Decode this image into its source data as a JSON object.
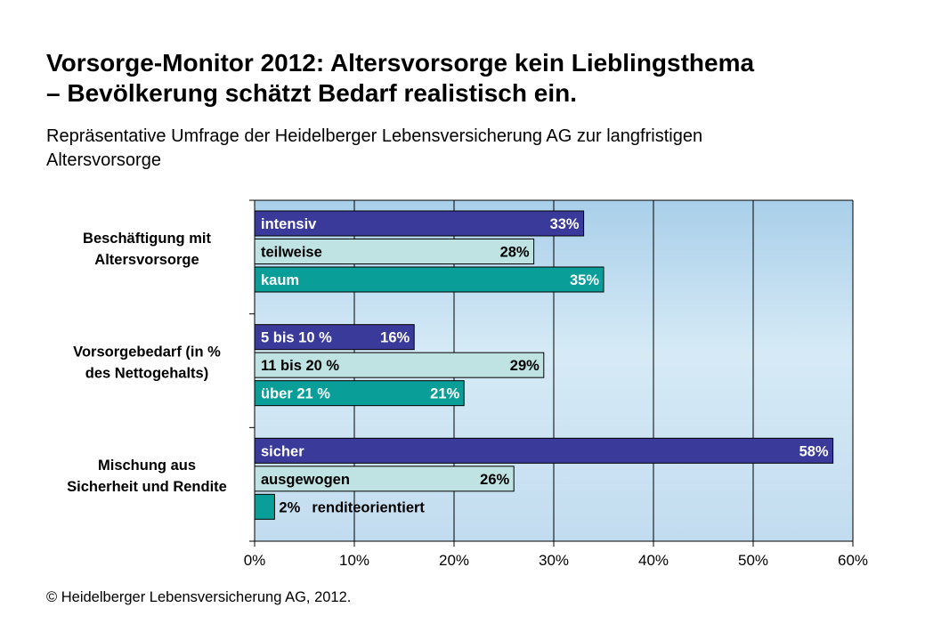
{
  "header": {
    "title_line1": "Vorsorge-Monitor 2012: Altersvorsorge kein Lieblingsthema",
    "title_line2": "– Bevölkerung schätzt Bedarf realistisch ein.",
    "subtitle_line1": "Repräsentative Umfrage der Heidelberger Lebensversicherung AG zur langfristigen",
    "subtitle_line2": "Altersvorsorge"
  },
  "footer": {
    "copyright": "© Heidelberger Lebensversicherung AG, 2012."
  },
  "colors": {
    "dark": "#3a3a9a",
    "light": "#bfe2e2",
    "teal": "#0a9e99",
    "plot_bg": "#c7e1f2",
    "grid": "#000000"
  },
  "chart_data": {
    "type": "bar",
    "orientation": "horizontal",
    "xlim": [
      0,
      60
    ],
    "x_ticks": [
      "0%",
      "10%",
      "20%",
      "30%",
      "40%",
      "50%",
      "60%"
    ],
    "grid": true,
    "groups": [
      {
        "label_lines": [
          "Beschäftigung mit",
          "Altersvorsorge"
        ],
        "bars": [
          {
            "label": "intensiv",
            "value": 33,
            "value_label": "33%",
            "color": "dark"
          },
          {
            "label": "teilweise",
            "value": 28,
            "value_label": "28%",
            "color": "light"
          },
          {
            "label": "kaum",
            "value": 35,
            "value_label": "35%",
            "color": "teal"
          }
        ]
      },
      {
        "label_lines": [
          "Vorsorgebedarf (in %",
          "des Nettogehalts)"
        ],
        "bars": [
          {
            "label": "5 bis 10 %",
            "value": 16,
            "value_label": "16%",
            "color": "dark"
          },
          {
            "label": "11 bis 20 %",
            "value": 29,
            "value_label": "29%",
            "color": "light"
          },
          {
            "label": "über 21 %",
            "value": 21,
            "value_label": "21%",
            "color": "teal"
          }
        ]
      },
      {
        "label_lines": [
          "Mischung aus",
          "Sicherheit und Rendite"
        ],
        "bars": [
          {
            "label": "sicher",
            "value": 58,
            "value_label": "58%",
            "color": "dark"
          },
          {
            "label": "ausgewogen",
            "value": 26,
            "value_label": "26%",
            "color": "light"
          },
          {
            "label": "renditeorientiert",
            "value": 2,
            "value_label": "2%",
            "color": "teal",
            "labels_outside": true
          }
        ]
      }
    ]
  }
}
